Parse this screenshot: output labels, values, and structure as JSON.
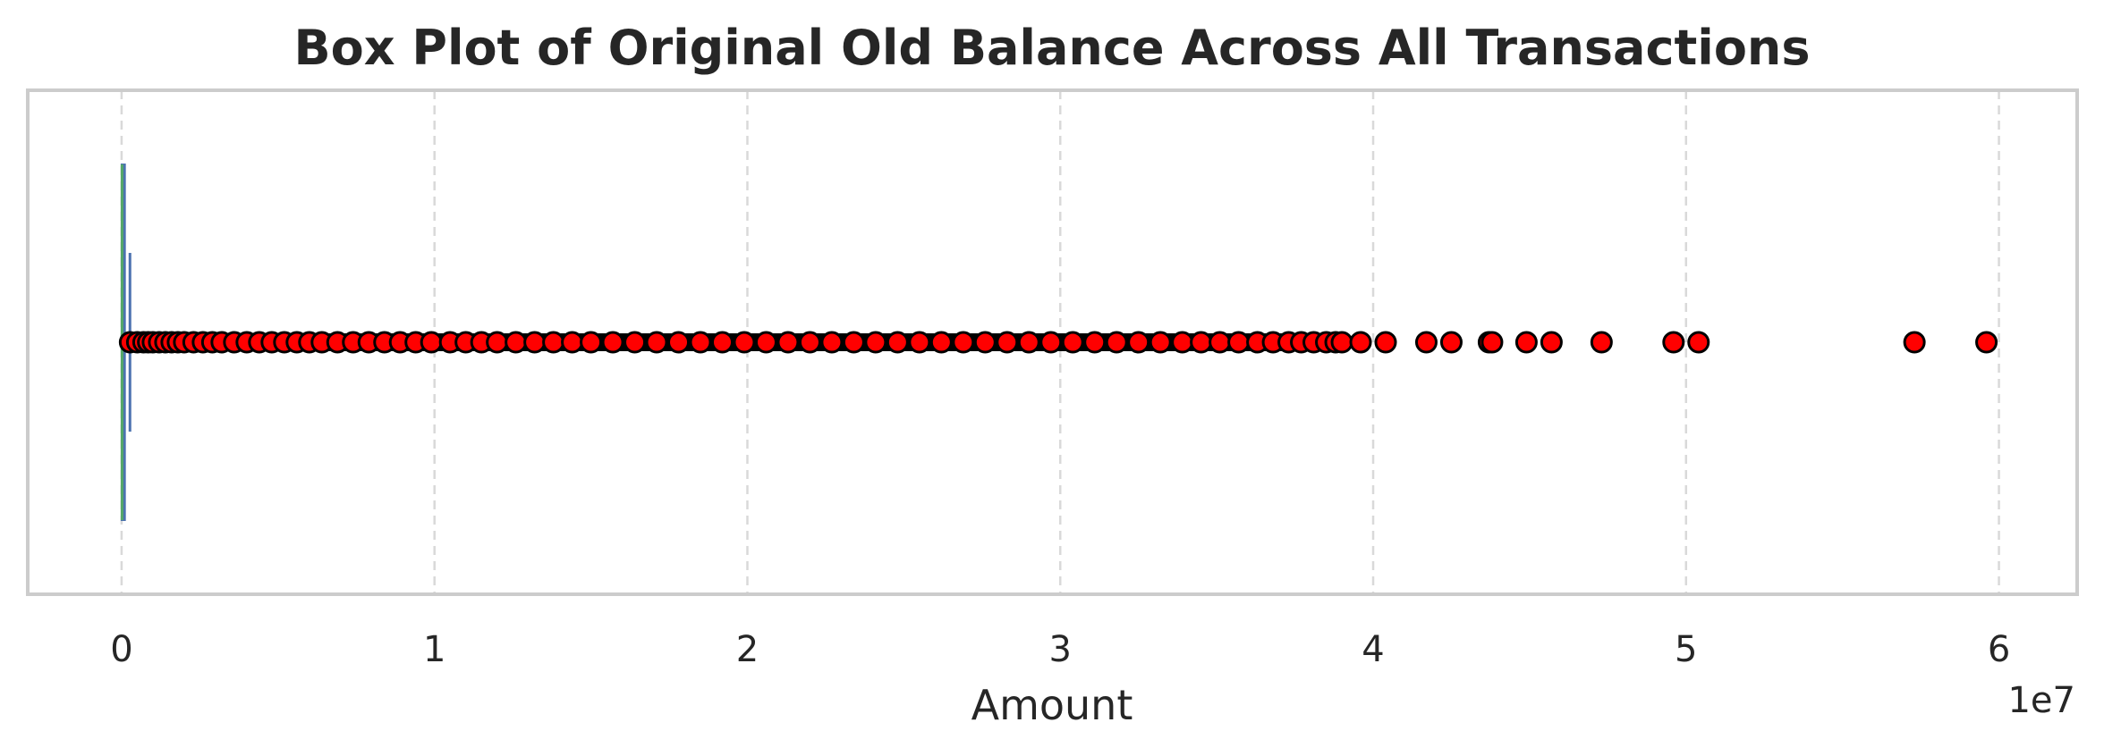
{
  "chart_data": {
    "type": "box",
    "title": "Box Plot of Original Old Balance Across All Transactions",
    "xlabel": "Amount",
    "ylabel": "",
    "offset_text": "1e7",
    "xlim": [
      -3000000,
      62500000
    ],
    "xticks": [
      0,
      10000000,
      20000000,
      30000000,
      40000000,
      50000000,
      60000000
    ],
    "xtick_labels": [
      "0",
      "1",
      "2",
      "3",
      "4",
      "5",
      "6"
    ],
    "grid": "vertical-dashed",
    "box": {
      "q1": 0,
      "median": 14000,
      "q3": 107000,
      "whisker_low": 0,
      "whisker_high": 267000
    },
    "colors": {
      "box": "#4c72b0",
      "median": "#55a868",
      "outlier_fill": "#ff0000",
      "outlier_edge": "#000000"
    },
    "outliers": [
      270000,
      500000,
      700000,
      850000,
      1000000,
      1200000,
      1400000,
      1600000,
      1800000,
      2000000,
      2300000,
      2600000,
      2900000,
      3200000,
      3600000,
      4000000,
      4400000,
      4800000,
      5200000,
      5600000,
      6000000,
      6400000,
      6900000,
      7400000,
      7900000,
      8400000,
      8900000,
      9400000,
      9900000,
      10500000,
      11000000,
      11500000,
      12000000,
      12600000,
      13200000,
      13800000,
      14400000,
      15000000,
      15700000,
      16400000,
      17100000,
      17800000,
      18500000,
      19200000,
      19900000,
      20600000,
      21300000,
      22000000,
      22700000,
      23400000,
      24100000,
      24800000,
      25500000,
      26200000,
      26900000,
      27600000,
      28300000,
      29000000,
      29700000,
      30400000,
      31100000,
      31800000,
      32500000,
      33200000,
      33900000,
      34500000,
      35100000,
      35700000,
      36300000,
      36800000,
      37300000,
      37700000,
      38100000,
      38500000,
      38800000,
      39000000,
      39600000,
      40400000,
      41700000,
      42500000,
      43700000,
      43800000,
      44900000,
      45700000,
      47300000,
      49600000,
      50400000,
      57300000,
      59600000
    ]
  }
}
